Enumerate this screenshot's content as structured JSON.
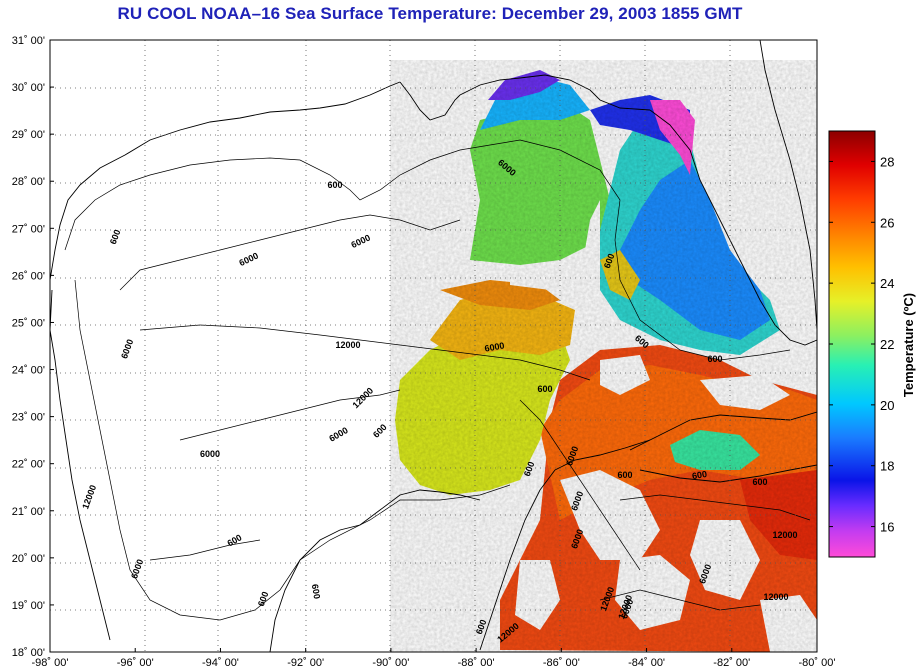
{
  "title": "RU COOL  NOAA–16  Sea Surface Temperature:  December 29, 2003 1855 GMT",
  "latitude_labels": [
    "31˚ 00'",
    "30˚ 00'",
    "29˚ 00'",
    "28˚ 00'",
    "27˚ 00'",
    "26˚ 00'",
    "25˚ 00'",
    "24˚ 00'",
    "23˚ 00'",
    "22˚ 00'",
    "21˚ 00'",
    "20˚ 00'",
    "19˚ 00'",
    "18˚ 00'"
  ],
  "longitude_labels": [
    "-98˚ 00'",
    "-96˚ 00'",
    "-94˚ 00'",
    "-92˚ 00'",
    "-90˚ 00'",
    "-88˚ 00'",
    "-86˚ 00'",
    "-84˚ 00'",
    "-82˚ 00'",
    "-80˚ 00'"
  ],
  "colorbar": {
    "title": "Temperature (ºC)",
    "ticks": [
      "28",
      "26",
      "24",
      "22",
      "20",
      "18",
      "16"
    ],
    "range": [
      15,
      29
    ]
  },
  "contour_labels": [
    "600",
    "6000",
    "600",
    "6000",
    "600",
    "6000",
    "6000",
    "600",
    "600",
    "12000",
    "6000",
    "600",
    "12000",
    "6000",
    "600",
    "12000",
    "6000",
    "600",
    "6000",
    "600",
    "600",
    "6000",
    "600",
    "6000",
    "12000",
    "6000",
    "6000",
    "600",
    "12000",
    "12000",
    "12000",
    "600",
    "12000",
    "6000",
    "600",
    "600"
  ]
}
